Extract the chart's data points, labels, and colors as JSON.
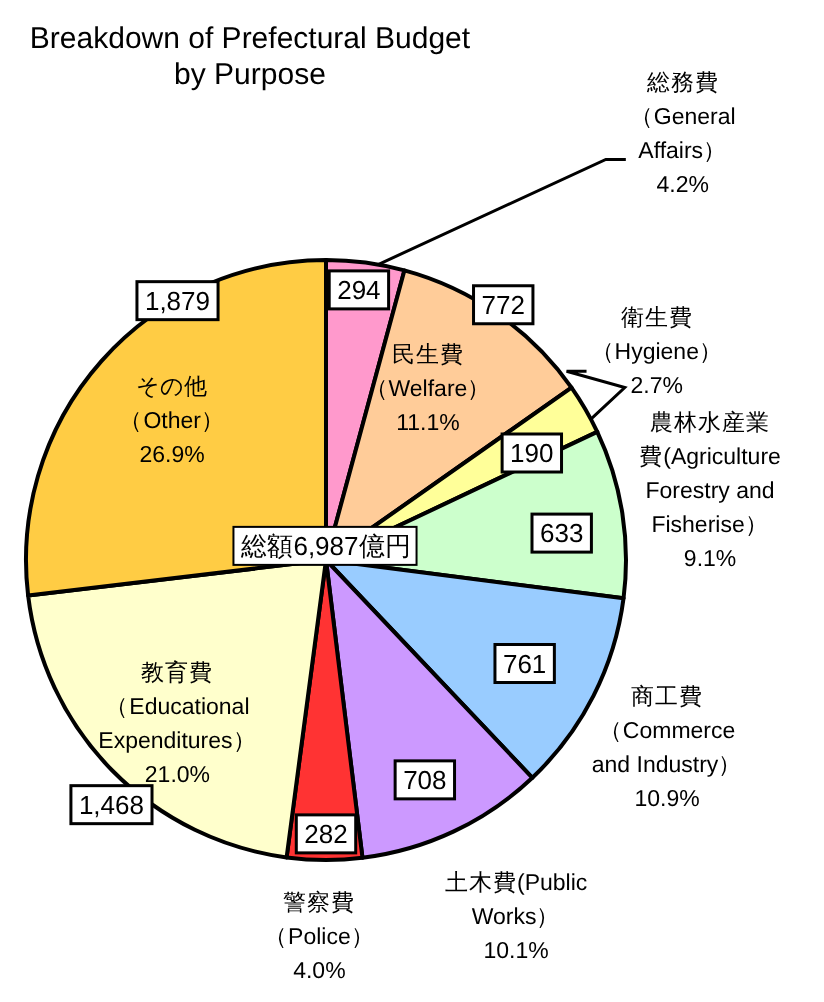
{
  "chart_data": {
    "type": "pie",
    "title": "Breakdown of Prefectural Budget by Purpose",
    "categories": [
      "総務費（General\nAffairs）\n4.2%",
      "民生費（Welfare）\n11.1%",
      "衛生費（Hygiene）\n2.7%",
      "農林水産業費(Agriculture\nForestry and\nFisherise）\n9.1%",
      "商工費（Commerce\nand Industry）\n10.9%",
      "土木費(Public\nWorks）\n10.1%",
      "警察費（Police）\n4.0%",
      "教育費（Educational\nExpenditures）\n21.0%",
      "その他（Other）\n26.9%"
    ],
    "values": [
      294,
      772,
      190,
      633,
      761,
      708,
      282,
      1468,
      1879
    ],
    "value_labels": [
      "294",
      "772",
      "190",
      "633",
      "761",
      "708",
      "282",
      "1,468",
      "1,879"
    ],
    "colors": [
      "#ff99cc",
      "#ffcc99",
      "#ffff99",
      "#ccffcc",
      "#99ccff",
      "#cc99ff",
      "#ff3333",
      "#ffffcc",
      "#ffcc44"
    ],
    "annotations": [
      "総額6,987億円"
    ]
  }
}
